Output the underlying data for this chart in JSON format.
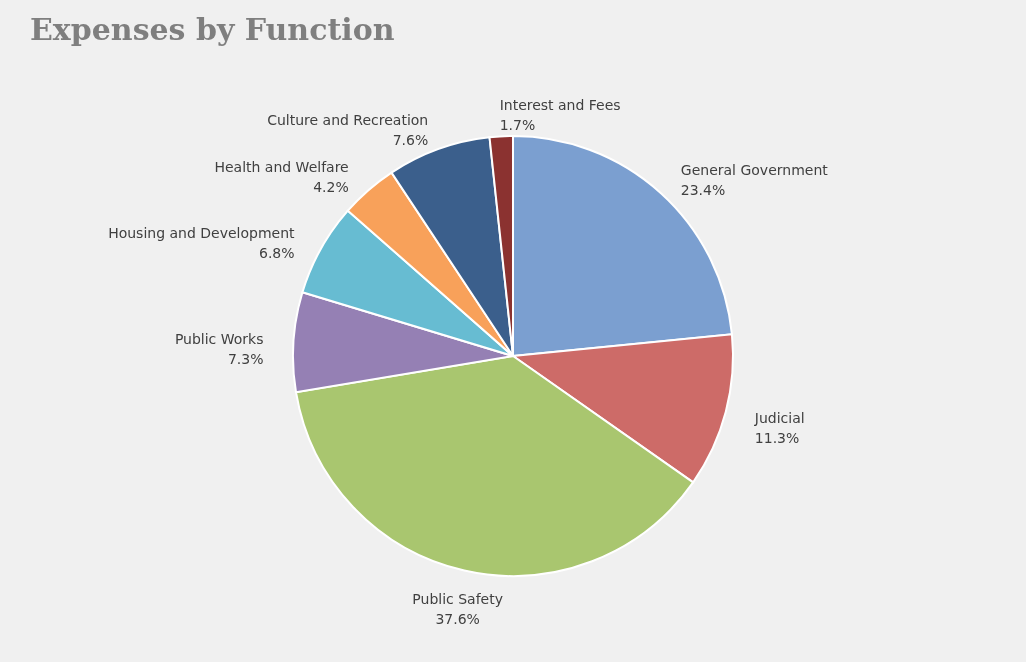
{
  "chart_data": {
    "type": "pie",
    "title": "Expenses by Function",
    "categories": [
      "General Government",
      "Judicial",
      "Public Safety",
      "Public Works",
      "Housing and Development",
      "Health and Welfare",
      "Culture and Recreation",
      "Interest and Fees"
    ],
    "values": [
      23.4,
      11.3,
      37.6,
      7.3,
      6.8,
      4.2,
      7.6,
      1.7
    ],
    "value_labels": [
      "23.4%",
      "11.3%",
      "37.6%",
      "7.3%",
      "6.8%",
      "4.2%",
      "7.6%",
      "1.7%"
    ],
    "colors": [
      "#7b9fd0",
      "#cd6b68",
      "#a9c66f",
      "#9580b4",
      "#67bcd2",
      "#f8a15a",
      "#3b5f8c",
      "#8b3230"
    ],
    "legend": false
  }
}
